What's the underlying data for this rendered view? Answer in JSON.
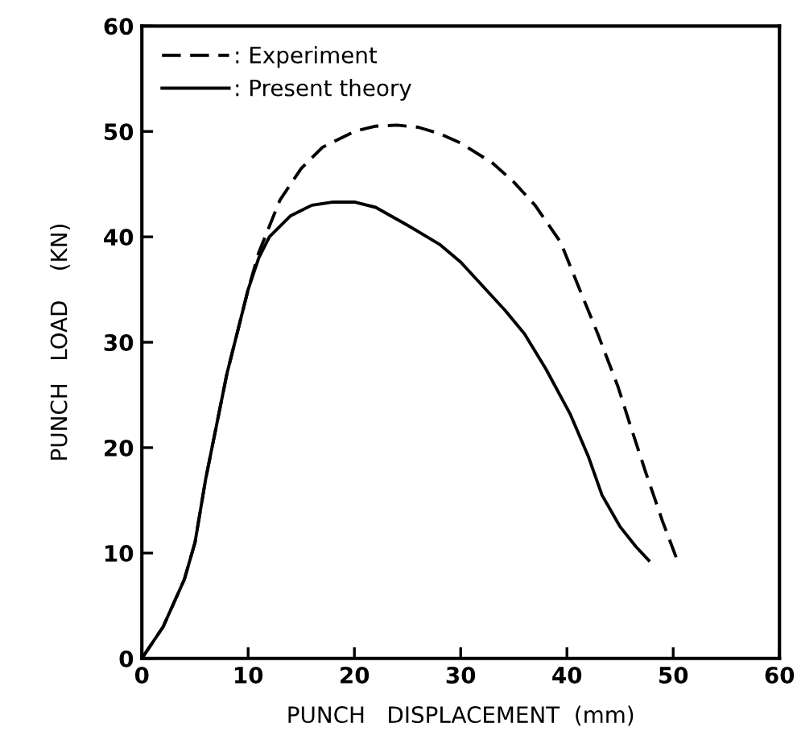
{
  "chart_data": {
    "type": "line",
    "xlabel": "PUNCH   DISPLACEMENT  (mm)",
    "ylabel": "PUNCH   LOAD    (KN)",
    "xlim": [
      0,
      60
    ],
    "ylim": [
      0,
      60
    ],
    "xticks": [
      0,
      10,
      20,
      30,
      40,
      50,
      60
    ],
    "yticks": [
      0,
      10,
      20,
      30,
      40,
      50,
      60
    ],
    "grid": false,
    "legend": "top left",
    "series": [
      {
        "name": ": Experiment",
        "color": "#000000",
        "line_style": "dashed",
        "x": [
          0,
          2,
          4,
          5,
          6,
          7,
          8,
          9,
          10,
          11,
          12,
          13,
          15,
          17,
          20,
          22,
          24,
          26,
          28,
          30,
          33,
          35,
          37,
          39.4,
          41,
          42.9,
          44.8,
          46,
          47.4,
          49,
          50.5
        ],
        "values": [
          0,
          3,
          7.5,
          11,
          17,
          22,
          27,
          31,
          35,
          38.5,
          41,
          43.5,
          46.5,
          48.5,
          50,
          50.5,
          50.6,
          50.4,
          49.8,
          48.9,
          47,
          45.2,
          43,
          39.5,
          35.5,
          30.8,
          25.8,
          22,
          17.7,
          13,
          9
        ]
      },
      {
        "name": ": Present theory",
        "color": "#000000",
        "line_style": "solid",
        "x": [
          0,
          2,
          4,
          5,
          6,
          7,
          8,
          9,
          10,
          11,
          12,
          14,
          16,
          18,
          20,
          22,
          25,
          28,
          30,
          34.2,
          36,
          38,
          40.3,
          42,
          43.3,
          45,
          46.5,
          47.7
        ],
        "values": [
          0,
          3,
          7.5,
          11,
          17,
          22,
          27,
          31,
          35,
          38,
          40,
          42,
          43,
          43.3,
          43.3,
          42.8,
          41.1,
          39.3,
          37.6,
          33,
          30.8,
          27.5,
          23.2,
          19.2,
          15.5,
          12.5,
          10.6,
          9.3
        ]
      }
    ]
  }
}
